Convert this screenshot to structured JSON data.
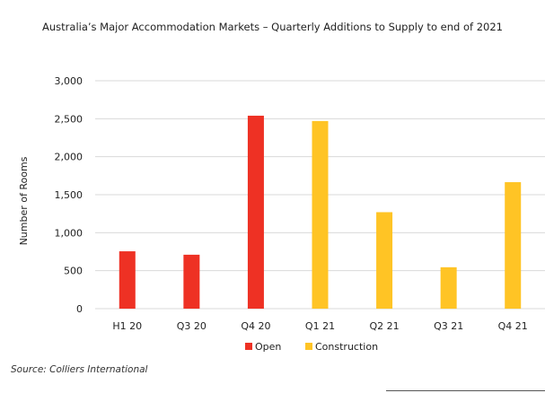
{
  "source": "Source: Colliers International",
  "chart_data": {
    "type": "bar",
    "title": "Australia’s Major Accommodation Markets – Quarterly Additions to Supply to end of 2021",
    "xlabel": "",
    "ylabel": "Number of Rooms",
    "categories": [
      "H1 20",
      "Q3 20",
      "Q4 20",
      "Q1 21",
      "Q2 21",
      "Q3 21",
      "Q4 21"
    ],
    "series": [
      {
        "name": "Open",
        "color": "#ee3124",
        "values": [
          755,
          710,
          2540,
          null,
          null,
          null,
          null
        ]
      },
      {
        "name": "Construction",
        "color": "#ffc425",
        "values": [
          null,
          null,
          null,
          2470,
          1270,
          545,
          1665
        ]
      }
    ],
    "ylim": [
      0,
      3000
    ],
    "yticks": [
      0,
      500,
      1000,
      1500,
      2000,
      2500,
      3000
    ],
    "ytick_labels": [
      "0",
      "500",
      "1,000",
      "1,500",
      "2,000",
      "2,500",
      "3,000"
    ],
    "grid": true,
    "grid_color": "#d9d9d9",
    "legend_position": "bottom"
  }
}
